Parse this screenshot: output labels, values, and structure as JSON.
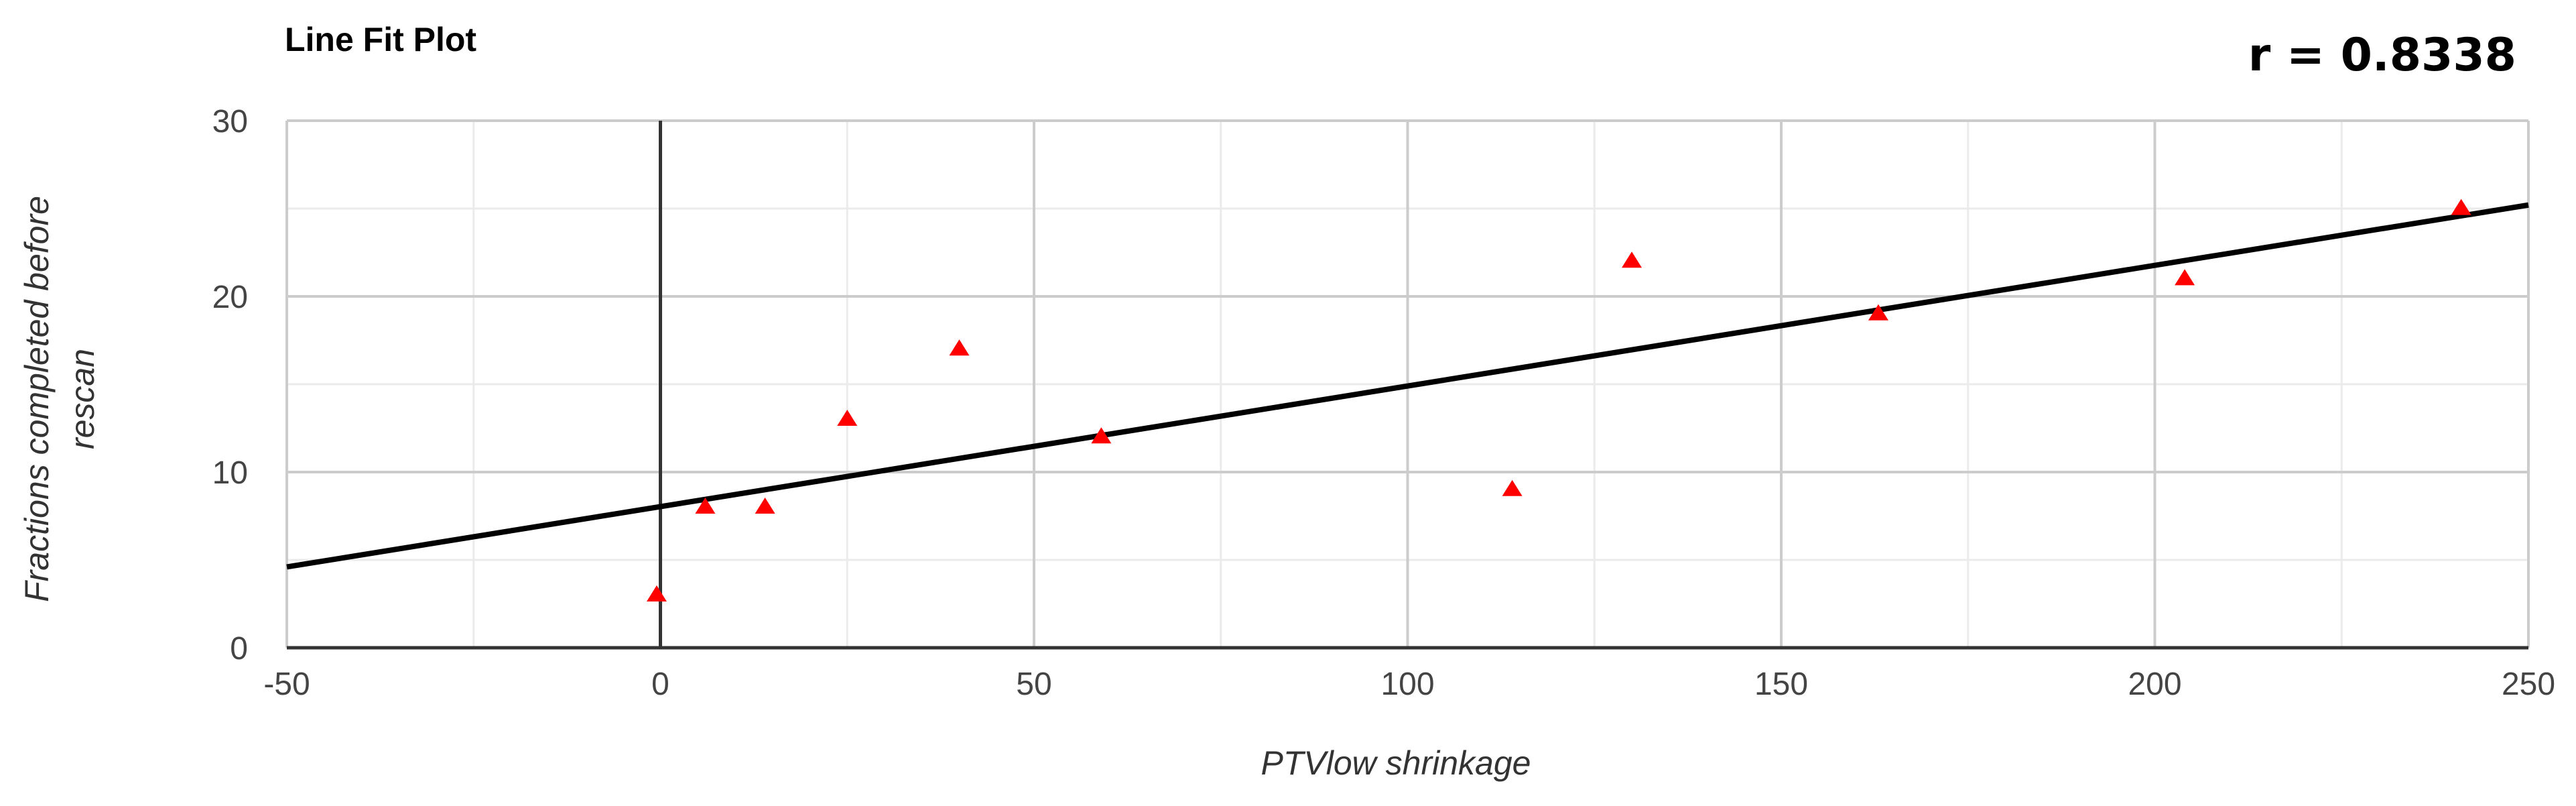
{
  "chart_data": {
    "type": "scatter",
    "title": "Line Fit Plot",
    "annotation": "r = 0.8338",
    "xlabel": "PTVlow shrinkage",
    "ylabel_lines": [
      "Fractions completed before",
      "rescan"
    ],
    "xlim": [
      -50,
      250
    ],
    "ylim": [
      0,
      30
    ],
    "xticks": [
      -50,
      0,
      50,
      100,
      150,
      200,
      250
    ],
    "yticks": [
      0,
      10,
      20,
      30
    ],
    "x_minor_step": 25,
    "y_minor_step": 5,
    "grid": true,
    "series": [
      {
        "marker": "triangle",
        "color": "#ff0000",
        "points": [
          {
            "x": -0.5,
            "y": 3
          },
          {
            "x": 6,
            "y": 8
          },
          {
            "x": 14,
            "y": 8
          },
          {
            "x": 25,
            "y": 13
          },
          {
            "x": 40,
            "y": 17
          },
          {
            "x": 59,
            "y": 12
          },
          {
            "x": 114,
            "y": 9
          },
          {
            "x": 130,
            "y": 22
          },
          {
            "x": 163,
            "y": 19
          },
          {
            "x": 204,
            "y": 21
          },
          {
            "x": 241,
            "y": 25
          }
        ]
      }
    ],
    "fit_line": {
      "color": "#000000",
      "points": [
        {
          "x": -50,
          "y": 4.6
        },
        {
          "x": 250,
          "y": 25.2
        }
      ]
    },
    "zero_line_x": 0
  }
}
